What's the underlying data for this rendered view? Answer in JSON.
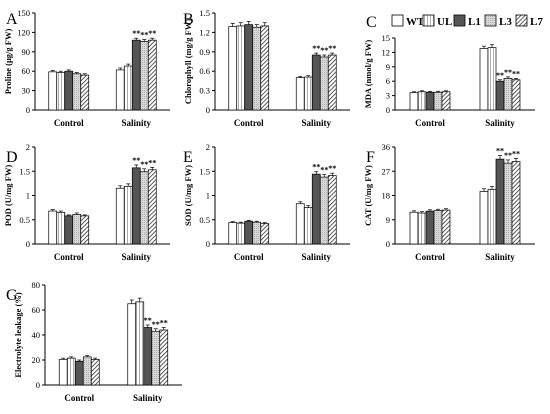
{
  "legend": [
    {
      "name": "WT",
      "pattern": "white"
    },
    {
      "name": "UL",
      "pattern": "vlines"
    },
    {
      "name": "L1",
      "pattern": "dark"
    },
    {
      "name": "L3",
      "pattern": "light"
    },
    {
      "name": "L7",
      "pattern": "diag"
    }
  ],
  "chart_data": [
    {
      "type": "bar",
      "panel": "A",
      "ylabel": "Proline (μg/g FW)",
      "categories": [
        "Control",
        "Salinity"
      ],
      "ylim": [
        0,
        150
      ],
      "yticks": [
        0,
        30,
        60,
        90,
        120,
        150
      ],
      "series": [
        {
          "name": "WT",
          "values": [
            59,
            62
          ],
          "errors": [
            2,
            3
          ]
        },
        {
          "name": "UL",
          "values": [
            58,
            68
          ],
          "errors": [
            2,
            3
          ]
        },
        {
          "name": "L1",
          "values": [
            60,
            108
          ],
          "errors": [
            2,
            3
          ]
        },
        {
          "name": "L3",
          "values": [
            56,
            106
          ],
          "errors": [
            2,
            3
          ]
        },
        {
          "name": "L7",
          "values": [
            54,
            108
          ],
          "errors": [
            2,
            3
          ]
        }
      ],
      "annotations": [
        "",
        "",
        "**",
        "**",
        "**"
      ]
    },
    {
      "type": "bar",
      "panel": "B",
      "ylabel": "Chlorophyll (mg/g FW)",
      "categories": [
        "Control",
        "Salinity"
      ],
      "ylim": [
        0,
        1.5
      ],
      "yticks": [
        0,
        0.3,
        0.6,
        0.9,
        1.2,
        1.5
      ],
      "series": [
        {
          "name": "WT",
          "values": [
            1.29,
            0.5
          ],
          "errors": [
            0.05,
            0.02
          ]
        },
        {
          "name": "UL",
          "values": [
            1.3,
            0.51
          ],
          "errors": [
            0.05,
            0.02
          ]
        },
        {
          "name": "L1",
          "values": [
            1.32,
            0.85
          ],
          "errors": [
            0.05,
            0.03
          ]
        },
        {
          "name": "L3",
          "values": [
            1.28,
            0.82
          ],
          "errors": [
            0.04,
            0.03
          ]
        },
        {
          "name": "L7",
          "values": [
            1.3,
            0.85
          ],
          "errors": [
            0.05,
            0.03
          ]
        }
      ],
      "annotations": [
        "",
        "",
        "**",
        "**",
        "**"
      ]
    },
    {
      "type": "bar",
      "panel": "C",
      "ylabel": "MDA (nmol/g FW)",
      "categories": [
        "Control",
        "Salinity"
      ],
      "ylim": [
        0,
        15
      ],
      "yticks": [
        0,
        3,
        6,
        9,
        12,
        15
      ],
      "series": [
        {
          "name": "WT",
          "values": [
            3.6,
            12.8
          ],
          "errors": [
            0.2,
            0.5
          ]
        },
        {
          "name": "UL",
          "values": [
            3.8,
            13.0
          ],
          "errors": [
            0.2,
            0.6
          ]
        },
        {
          "name": "L1",
          "values": [
            3.7,
            6.0
          ],
          "errors": [
            0.2,
            0.3
          ]
        },
        {
          "name": "L3",
          "values": [
            3.7,
            6.6
          ],
          "errors": [
            0.2,
            0.3
          ]
        },
        {
          "name": "L7",
          "values": [
            3.8,
            6.3
          ],
          "errors": [
            0.2,
            0.3
          ]
        }
      ],
      "annotations": [
        "",
        "",
        "**",
        "**",
        "**"
      ]
    },
    {
      "type": "bar",
      "panel": "D",
      "ylabel": "POD (U/mg FW)",
      "categories": [
        "Control",
        "Salinity"
      ],
      "ylim": [
        0,
        2
      ],
      "yticks": [
        0,
        0.5,
        1,
        1.5,
        2
      ],
      "series": [
        {
          "name": "WT",
          "values": [
            0.68,
            1.15
          ],
          "errors": [
            0.03,
            0.05
          ]
        },
        {
          "name": "UL",
          "values": [
            0.65,
            1.19
          ],
          "errors": [
            0.03,
            0.05
          ]
        },
        {
          "name": "L1",
          "values": [
            0.58,
            1.57
          ],
          "errors": [
            0.02,
            0.06
          ]
        },
        {
          "name": "L3",
          "values": [
            0.61,
            1.49
          ],
          "errors": [
            0.03,
            0.06
          ]
        },
        {
          "name": "L7",
          "values": [
            0.58,
            1.53
          ],
          "errors": [
            0.02,
            0.05
          ]
        }
      ],
      "annotations": [
        "",
        "",
        "**",
        "**",
        "**"
      ]
    },
    {
      "type": "bar",
      "panel": "E",
      "ylabel": "SOD (U/mg FW)",
      "categories": [
        "Control",
        "Salinity"
      ],
      "ylim": [
        0,
        2
      ],
      "yticks": [
        0,
        0.5,
        1,
        1.5,
        2
      ],
      "series": [
        {
          "name": "WT",
          "values": [
            0.44,
            0.83
          ],
          "errors": [
            0.02,
            0.04
          ]
        },
        {
          "name": "UL",
          "values": [
            0.43,
            0.75
          ],
          "errors": [
            0.02,
            0.04
          ]
        },
        {
          "name": "L1",
          "values": [
            0.47,
            1.44
          ],
          "errors": [
            0.02,
            0.05
          ]
        },
        {
          "name": "L3",
          "values": [
            0.45,
            1.38
          ],
          "errors": [
            0.02,
            0.05
          ]
        },
        {
          "name": "L7",
          "values": [
            0.42,
            1.41
          ],
          "errors": [
            0.02,
            0.05
          ]
        }
      ],
      "annotations": [
        "",
        "",
        "**",
        "**",
        "**"
      ]
    },
    {
      "type": "bar",
      "panel": "F",
      "ylabel": "CAT (U/mg FW)",
      "categories": [
        "Control",
        "Salinity"
      ],
      "ylim": [
        0,
        36
      ],
      "yticks": [
        0,
        9,
        18,
        27,
        36
      ],
      "series": [
        {
          "name": "WT",
          "values": [
            11.8,
            19.5
          ],
          "errors": [
            0.5,
            1.0
          ]
        },
        {
          "name": "UL",
          "values": [
            11.5,
            20.3
          ],
          "errors": [
            0.5,
            1.0
          ]
        },
        {
          "name": "L1",
          "values": [
            12.2,
            31.5
          ],
          "errors": [
            0.5,
            1.3
          ]
        },
        {
          "name": "L3",
          "values": [
            12.4,
            30.0
          ],
          "errors": [
            0.5,
            1.2
          ]
        },
        {
          "name": "L7",
          "values": [
            12.6,
            30.6
          ],
          "errors": [
            0.5,
            1.2
          ]
        }
      ],
      "annotations": [
        "",
        "",
        "**",
        "**",
        "**"
      ]
    },
    {
      "type": "bar",
      "panel": "G",
      "ylabel": "Electrolyte leakage (%)",
      "categories": [
        "Control",
        "Salinity"
      ],
      "ylim": [
        0,
        80
      ],
      "yticks": [
        0,
        20,
        40,
        60,
        80
      ],
      "series": [
        {
          "name": "WT",
          "values": [
            20.5,
            65
          ],
          "errors": [
            1,
            3
          ]
        },
        {
          "name": "UL",
          "values": [
            21.5,
            66.5
          ],
          "errors": [
            1,
            3
          ]
        },
        {
          "name": "L1",
          "values": [
            19,
            46
          ],
          "errors": [
            1,
            2
          ]
        },
        {
          "name": "L3",
          "values": [
            22.5,
            43
          ],
          "errors": [
            1,
            2
          ]
        },
        {
          "name": "L7",
          "values": [
            20.5,
            44
          ],
          "errors": [
            1,
            2
          ]
        }
      ],
      "annotations": [
        "",
        "",
        "**",
        "**",
        "**"
      ]
    }
  ]
}
